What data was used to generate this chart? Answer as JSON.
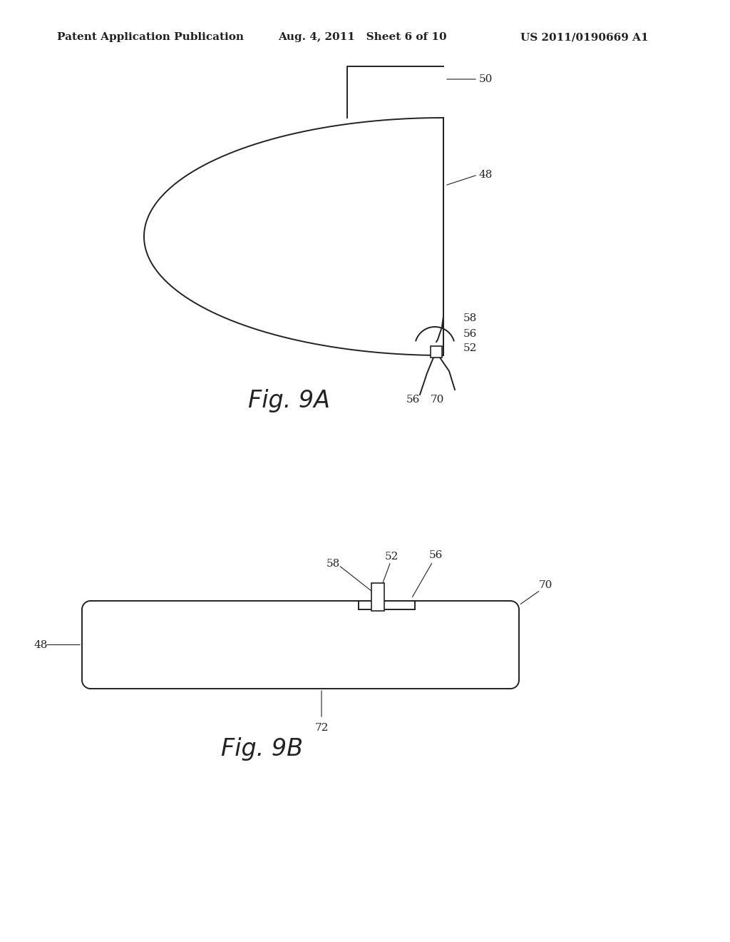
{
  "background_color": "#ffffff",
  "header_left": "Patent Application Publication",
  "header_mid": "Aug. 4, 2011   Sheet 6 of 10",
  "header_right": "US 2011/0190669 A1",
  "header_fontsize": 11,
  "fig9a_label": "Fig. 9A",
  "fig9b_label": "Fig. 9B",
  "annotation_fontsize": 11
}
